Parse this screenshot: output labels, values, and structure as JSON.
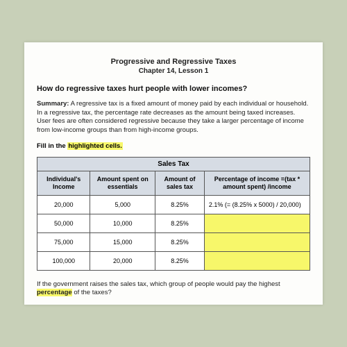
{
  "header": {
    "title": "Progressive and Regressive Taxes",
    "subtitle": "Chapter 14, Lesson 1"
  },
  "question": "How do regressive taxes hurt people with lower incomes?",
  "summary": {
    "label": "Summary:",
    "text": " A regressive tax is a fixed amount of money paid by each individual or household. In a regressive tax, the percentage rate decreases as the amount being taxed increases. User fees are often considered regressive because they take a larger percentage of income from low-income groups than from high-income groups."
  },
  "fill": {
    "prefix": "Fill in the ",
    "highlight": "highlighted cells.",
    "suffix": ""
  },
  "table": {
    "title": "Sales Tax",
    "columns": {
      "c1": "Individual's Income",
      "c2": "Amount spent on essentials",
      "c3": "Amount of sales tax",
      "c4": "Percentage of income =(tax * amount spent) /income"
    },
    "rows": [
      {
        "income": "20,000",
        "spent": "5,000",
        "tax": "8.25%",
        "pct": "2.1% (= (8.25% x 5000) / 20,000)"
      },
      {
        "income": "50,000",
        "spent": "10,000",
        "tax": "8.25%",
        "pct": ""
      },
      {
        "income": "75,000",
        "spent": "15,000",
        "tax": "8.25%",
        "pct": ""
      },
      {
        "income": "100,000",
        "spent": "20,000",
        "tax": "8.25%",
        "pct": ""
      }
    ]
  },
  "footer": {
    "line1": "If the government raises the sales tax, which group of people would pay the highest",
    "hl": "percentage",
    "line2": " of the taxes?"
  },
  "colors": {
    "highlight": "#f7f76a",
    "header_bg": "#d6dce4",
    "page_bg": "#fdfdfb",
    "outer_bg": "#c8d0b8",
    "border": "#555"
  }
}
